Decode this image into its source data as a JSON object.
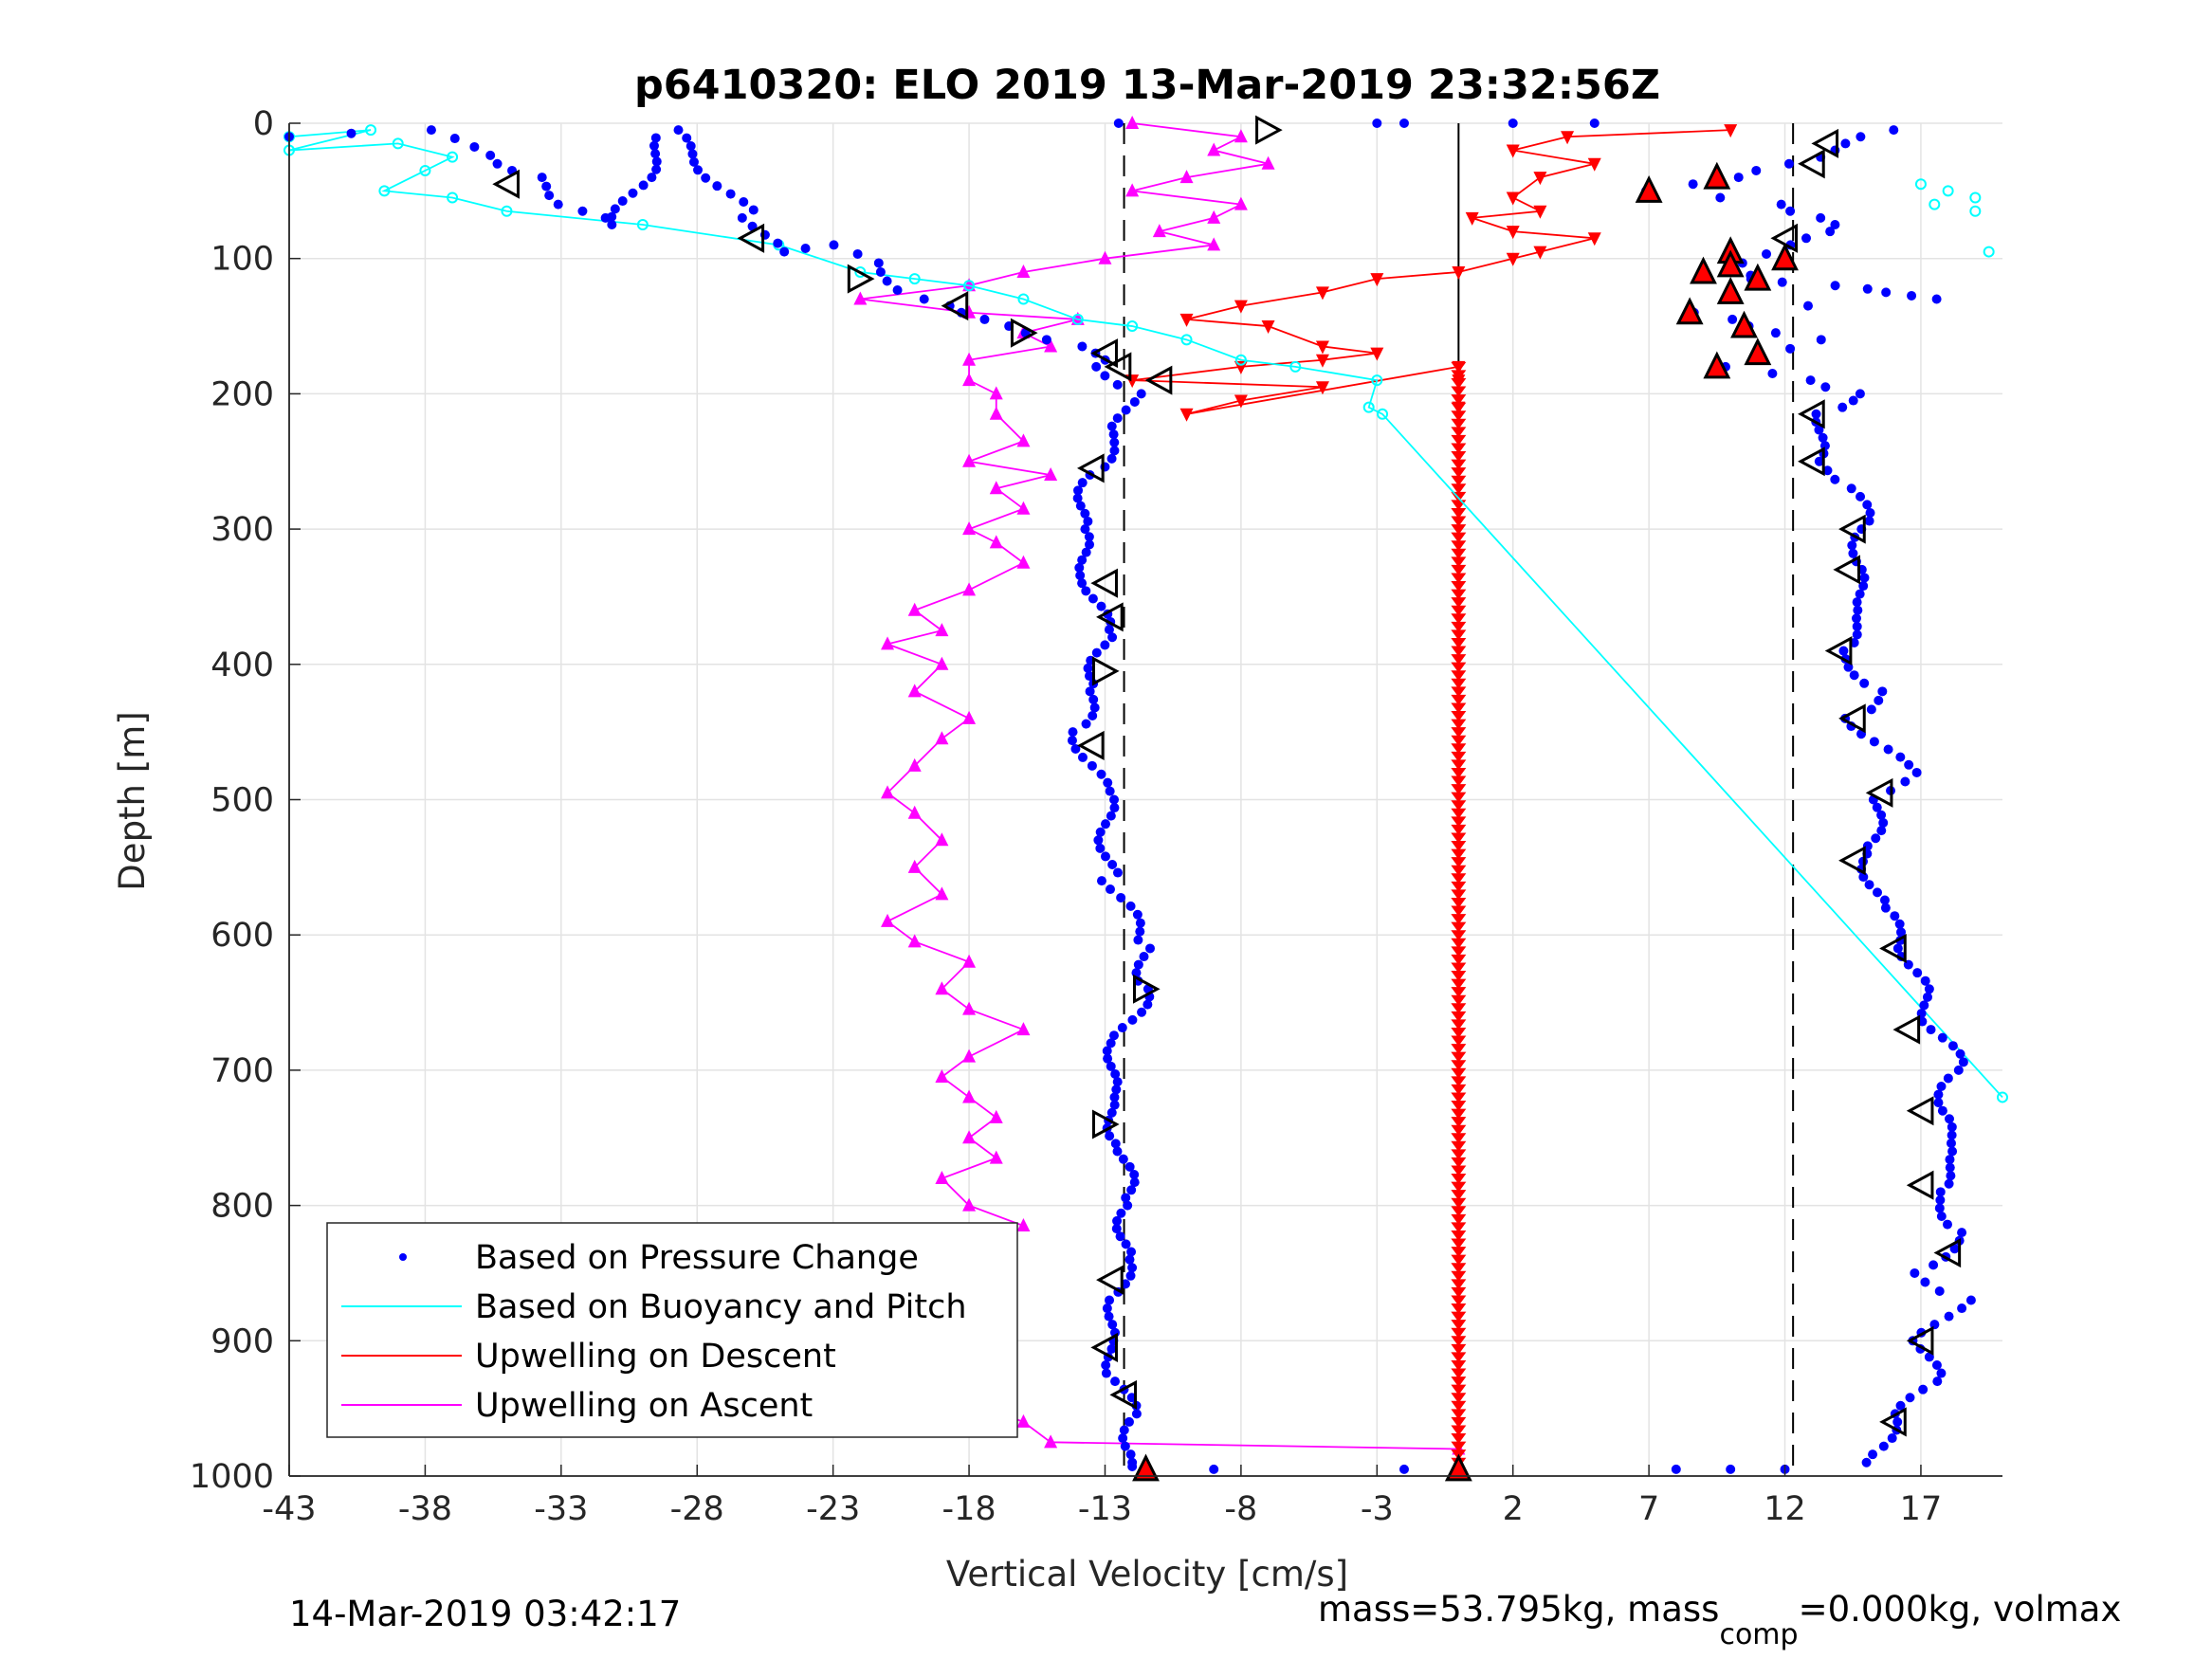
{
  "chart_data": {
    "type": "scatter",
    "title": "p6410320: ELO 2019 13-Mar-2019 23:32:56Z",
    "xlabel": "Vertical Velocity [cm/s]",
    "ylabel": "Depth [m]",
    "xlim": [
      -43,
      20
    ],
    "ylim": [
      0,
      1000
    ],
    "y_reversed": true,
    "grid": true,
    "x_ticks": [
      -43,
      -38,
      -33,
      -28,
      -23,
      -18,
      -13,
      -8,
      -3,
      2,
      7,
      12,
      17
    ],
    "y_ticks": [
      0,
      100,
      200,
      300,
      400,
      500,
      600,
      700,
      800,
      900,
      1000
    ],
    "reference_lines": [
      {
        "x": -12.3,
        "style": "dashed"
      },
      {
        "x": 0,
        "style": "solid"
      },
      {
        "x": 12.3,
        "style": "dashed"
      }
    ],
    "legend": {
      "placement": "bottom-left",
      "entries": [
        {
          "label": "Based on Pressure Change",
          "series": "pressure"
        },
        {
          "label": "Based on Buoyancy and Pitch",
          "series": "buoyancy"
        },
        {
          "label": "Upwelling on Descent",
          "series": "descent"
        },
        {
          "label": "Upwelling on Ascent",
          "series": "ascent"
        }
      ]
    },
    "series": [
      {
        "key": "pressure",
        "name": "Based on Pressure Change",
        "color": "#0000ff",
        "marker": "dot",
        "descent": [
          [
            -43,
            10
          ],
          [
            -38,
            5
          ],
          [
            -35,
            30
          ],
          [
            -34,
            40
          ],
          [
            -33,
            60
          ],
          [
            -31,
            75
          ],
          [
            -29,
            5
          ],
          [
            -26,
            70
          ],
          [
            -25,
            95
          ],
          [
            -23,
            90
          ],
          [
            -21,
            110
          ],
          [
            -20,
            130
          ],
          [
            -18,
            140
          ],
          [
            -16,
            155
          ],
          [
            -14,
            165
          ],
          [
            -13,
            180
          ],
          [
            -12,
            200
          ],
          [
            -12.5,
            230
          ],
          [
            -13.5,
            260
          ],
          [
            -14,
            300
          ],
          [
            -13.5,
            340
          ],
          [
            -13,
            380
          ],
          [
            -13.5,
            420
          ],
          [
            -14,
            450
          ],
          [
            -13,
            500
          ],
          [
            -12.8,
            560
          ],
          [
            -11.5,
            610
          ],
          [
            -11.5,
            640
          ],
          [
            -12.5,
            680
          ],
          [
            -13,
            720
          ],
          [
            -12.3,
            760
          ],
          [
            -12.2,
            800
          ],
          [
            -12.3,
            840
          ],
          [
            -12.5,
            870
          ],
          [
            -13,
            900
          ],
          [
            -12.5,
            930
          ],
          [
            -12,
            960
          ],
          [
            -12,
            990
          ]
        ],
        "ascent": [
          [
            16,
            5
          ],
          [
            14,
            15
          ],
          [
            12.5,
            30
          ],
          [
            10,
            40
          ],
          [
            7,
            50
          ],
          [
            12,
            60
          ],
          [
            13,
            70
          ],
          [
            14,
            80
          ],
          [
            12,
            90
          ],
          [
            10,
            110
          ],
          [
            11,
            115
          ],
          [
            13.5,
            120
          ],
          [
            16,
            125
          ],
          [
            17.5,
            130
          ],
          [
            8.5,
            140
          ],
          [
            11,
            150
          ],
          [
            13,
            160
          ],
          [
            10,
            180
          ],
          [
            13,
            190
          ],
          [
            14.5,
            200
          ],
          [
            13.5,
            215
          ],
          [
            13,
            250
          ],
          [
            14.5,
            270
          ],
          [
            15,
            300
          ],
          [
            14.5,
            330
          ],
          [
            15,
            360
          ],
          [
            14,
            390
          ],
          [
            15.5,
            420
          ],
          [
            14.5,
            440
          ],
          [
            16.5,
            480
          ],
          [
            15.5,
            500
          ],
          [
            15,
            540
          ],
          [
            15.5,
            580
          ],
          [
            16.5,
            610
          ],
          [
            17,
            640
          ],
          [
            17.5,
            670
          ],
          [
            18.5,
            700
          ],
          [
            17.5,
            730
          ],
          [
            18.5,
            760
          ],
          [
            17.5,
            790
          ],
          [
            18.5,
            820
          ],
          [
            17,
            850
          ],
          [
            18.5,
            870
          ],
          [
            17,
            900
          ],
          [
            17.5,
            930
          ],
          [
            16,
            960
          ],
          [
            15,
            990
          ]
        ],
        "surface": [
          [
            -12.5,
            0
          ],
          [
            -3,
            0
          ],
          [
            -2,
            0
          ],
          [
            2,
            0
          ],
          [
            5,
            0
          ],
          [
            8,
            995
          ],
          [
            10,
            995
          ],
          [
            12,
            995
          ],
          [
            -2,
            995
          ],
          [
            -9,
            995
          ],
          [
            -12,
            993
          ]
        ]
      },
      {
        "key": "buoyancy",
        "name": "Based on Buoyancy and Pitch",
        "color": "#00ffff",
        "marker": "circle-line",
        "points": [
          [
            -43,
            10
          ],
          [
            -40,
            5
          ],
          [
            -43,
            20
          ],
          [
            -39,
            15
          ],
          [
            -37,
            25
          ],
          [
            -38,
            35
          ],
          [
            -39.5,
            50
          ],
          [
            -37,
            55
          ],
          [
            -35,
            65
          ],
          [
            -30,
            75
          ],
          [
            -25,
            90
          ],
          [
            -22,
            110
          ],
          [
            -20,
            115
          ],
          [
            -18,
            120
          ],
          [
            -16,
            130
          ],
          [
            -14,
            145
          ],
          [
            -12,
            150
          ],
          [
            -10,
            160
          ],
          [
            -8,
            175
          ],
          [
            -6,
            180
          ],
          [
            -3,
            190
          ],
          [
            -3.3,
            210
          ],
          [
            -2.8,
            215
          ],
          [
            20,
            720
          ]
        ],
        "offscale": [
          [
            17,
            45
          ],
          [
            18,
            50
          ],
          [
            19,
            55
          ],
          [
            17.5,
            60
          ],
          [
            19,
            65
          ],
          [
            19.5,
            95
          ]
        ]
      },
      {
        "key": "descent",
        "name": "Upwelling on Descent",
        "color": "#ff0000",
        "marker": "triangle-down",
        "points": [
          [
            10,
            5
          ],
          [
            4,
            10
          ],
          [
            2,
            20
          ],
          [
            5,
            30
          ],
          [
            3,
            40
          ],
          [
            2,
            55
          ],
          [
            3,
            65
          ],
          [
            0.5,
            70
          ],
          [
            2,
            80
          ],
          [
            5,
            85
          ],
          [
            3,
            95
          ],
          [
            2,
            100
          ],
          [
            0,
            110
          ],
          [
            -3,
            115
          ],
          [
            -5,
            125
          ],
          [
            -8,
            135
          ],
          [
            -10,
            145
          ],
          [
            -7,
            150
          ],
          [
            -5,
            165
          ],
          [
            -3,
            170
          ],
          [
            -5,
            175
          ],
          [
            -8,
            180
          ],
          [
            -12,
            190
          ],
          [
            -5,
            195
          ],
          [
            -8,
            205
          ],
          [
            -10,
            215
          ],
          [
            0,
            180
          ],
          [
            0,
            190
          ],
          [
            0,
            210
          ]
        ]
      },
      {
        "key": "ascent",
        "name": "Upwelling on Ascent",
        "color": "#ff00ff",
        "marker": "triangle-up",
        "points": [
          [
            -12,
            0
          ],
          [
            -8,
            10
          ],
          [
            -9,
            20
          ],
          [
            -7,
            30
          ],
          [
            -10,
            40
          ],
          [
            -12,
            50
          ],
          [
            -8,
            60
          ],
          [
            -9,
            70
          ],
          [
            -11,
            80
          ],
          [
            -9,
            90
          ],
          [
            -13,
            100
          ],
          [
            -16,
            110
          ],
          [
            -18,
            120
          ],
          [
            -22,
            130
          ],
          [
            -18,
            140
          ],
          [
            -14,
            145
          ],
          [
            -16,
            155
          ],
          [
            -15,
            165
          ],
          [
            -18,
            175
          ],
          [
            -18,
            190
          ],
          [
            -17,
            200
          ],
          [
            -17,
            215
          ],
          [
            -16,
            235
          ],
          [
            -18,
            250
          ],
          [
            -15,
            260
          ],
          [
            -17,
            270
          ],
          [
            -16,
            285
          ],
          [
            -18,
            300
          ],
          [
            -17,
            310
          ],
          [
            -16,
            325
          ],
          [
            -18,
            345
          ],
          [
            -20,
            360
          ],
          [
            -19,
            375
          ],
          [
            -21,
            385
          ],
          [
            -19,
            400
          ],
          [
            -20,
            420
          ],
          [
            -18,
            440
          ],
          [
            -19,
            455
          ],
          [
            -20,
            475
          ],
          [
            -21,
            495
          ],
          [
            -20,
            510
          ],
          [
            -19,
            530
          ],
          [
            -20,
            550
          ],
          [
            -19,
            570
          ],
          [
            -21,
            590
          ],
          [
            -20,
            605
          ],
          [
            -18,
            620
          ],
          [
            -19,
            640
          ],
          [
            -18,
            655
          ],
          [
            -16,
            670
          ],
          [
            -18,
            690
          ],
          [
            -19,
            705
          ],
          [
            -18,
            720
          ],
          [
            -17,
            735
          ],
          [
            -18,
            750
          ],
          [
            -17,
            765
          ],
          [
            -19,
            780
          ],
          [
            -18,
            800
          ],
          [
            -16,
            815
          ],
          [
            -17,
            830
          ],
          [
            -18,
            845
          ],
          [
            -19,
            860
          ],
          [
            -18,
            880
          ],
          [
            -17,
            895
          ],
          [
            -18,
            915
          ],
          [
            -19,
            930
          ],
          [
            -18,
            945
          ],
          [
            -16,
            960
          ],
          [
            -15,
            975
          ],
          [
            0,
            980
          ],
          [
            0,
            995
          ]
        ]
      },
      {
        "key": "descent-column",
        "name": "",
        "color": "#ff0000",
        "marker": "triangle-down",
        "column": {
          "x": 0,
          "from": 180,
          "to": 995
        }
      }
    ],
    "overlay_markers": {
      "open_triangles_left": [
        [
          -35,
          45
        ],
        [
          -26,
          85
        ],
        [
          -18.5,
          135
        ],
        [
          -13,
          170
        ],
        [
          -12.5,
          180
        ],
        [
          -11,
          190
        ],
        [
          -13.5,
          255
        ],
        [
          -13,
          340
        ],
        [
          -12.8,
          365
        ],
        [
          -13.5,
          460
        ],
        [
          -12.8,
          855
        ],
        [
          -13,
          905
        ],
        [
          -12.3,
          940
        ],
        [
          13.5,
          15
        ],
        [
          13,
          30
        ],
        [
          12,
          85
        ],
        [
          13,
          215
        ],
        [
          13,
          250
        ],
        [
          14.5,
          300
        ],
        [
          14.3,
          330
        ],
        [
          14,
          390
        ],
        [
          14.5,
          440
        ],
        [
          15.5,
          495
        ],
        [
          14.5,
          545
        ],
        [
          16,
          610
        ],
        [
          16.5,
          670
        ],
        [
          17,
          730
        ],
        [
          17,
          785
        ],
        [
          18,
          835
        ],
        [
          17,
          900
        ],
        [
          16,
          960
        ]
      ],
      "open_triangles_right": [
        [
          -7,
          5
        ],
        [
          -22,
          115
        ],
        [
          -16,
          155
        ],
        [
          -13,
          405
        ],
        [
          -13,
          740
        ],
        [
          -11.5,
          640
        ]
      ],
      "filled_up_red": [
        [
          9.5,
          40
        ],
        [
          7,
          50
        ],
        [
          10,
          95
        ],
        [
          9,
          110
        ],
        [
          11,
          115
        ],
        [
          10,
          125
        ],
        [
          8.5,
          140
        ],
        [
          10.5,
          150
        ],
        [
          11,
          170
        ],
        [
          9.5,
          180
        ],
        [
          10,
          105
        ],
        [
          12,
          100
        ],
        [
          0,
          995
        ],
        [
          -11.5,
          995
        ]
      ]
    }
  },
  "footer": {
    "timestamp": "14-Mar-2019 03:42:17",
    "mass_prefix": "mass=53.795kg, mass",
    "mass_sub": "comp",
    "mass_suffix": "=0.000kg, volmax"
  }
}
